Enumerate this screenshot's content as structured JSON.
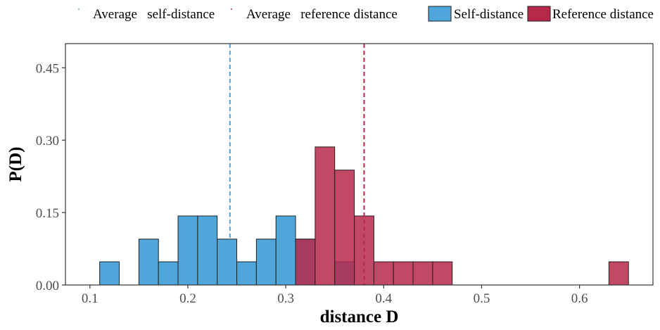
{
  "chart_data": {
    "type": "bar",
    "subtype": "overlapping-histogram",
    "title": "",
    "xlabel": "distance D",
    "ylabel": "P(D)",
    "xlim": [
      0.075,
      0.675
    ],
    "ylim": [
      0,
      0.5
    ],
    "x_ticks": [
      0.1,
      0.2,
      0.3,
      0.4,
      0.5,
      0.6
    ],
    "x_tick_labels": [
      "0.1",
      "0.2",
      "0.3",
      "0.4",
      "0.5",
      "0.6"
    ],
    "y_ticks": [
      0,
      0.15,
      0.3,
      0.45
    ],
    "y_tick_labels": [
      "0.00",
      "0.15",
      "0.30",
      "0.45"
    ],
    "bin_width": 0.02,
    "grid": false,
    "legend_position": "top",
    "series": [
      {
        "name": "Self-distance",
        "color": "#4ea6da",
        "bins": [
          {
            "x0": 0.11,
            "x1": 0.13,
            "value": 0.048
          },
          {
            "x0": 0.13,
            "x1": 0.15,
            "value": 0.0
          },
          {
            "x0": 0.15,
            "x1": 0.17,
            "value": 0.095
          },
          {
            "x0": 0.17,
            "x1": 0.19,
            "value": 0.048
          },
          {
            "x0": 0.19,
            "x1": 0.21,
            "value": 0.143
          },
          {
            "x0": 0.21,
            "x1": 0.23,
            "value": 0.143
          },
          {
            "x0": 0.23,
            "x1": 0.25,
            "value": 0.095
          },
          {
            "x0": 0.25,
            "x1": 0.27,
            "value": 0.048
          },
          {
            "x0": 0.27,
            "x1": 0.29,
            "value": 0.095
          },
          {
            "x0": 0.29,
            "x1": 0.31,
            "value": 0.143
          },
          {
            "x0": 0.31,
            "x1": 0.33,
            "value": 0.095
          },
          {
            "x0": 0.33,
            "x1": 0.35,
            "value": 0.0
          },
          {
            "x0": 0.35,
            "x1": 0.37,
            "value": 0.048
          },
          {
            "x0": 0.37,
            "x1": 0.39,
            "value": 0.0
          },
          {
            "x0": 0.39,
            "x1": 0.41,
            "value": 0.0
          },
          {
            "x0": 0.41,
            "x1": 0.43,
            "value": 0.0
          },
          {
            "x0": 0.43,
            "x1": 0.45,
            "value": 0.0
          },
          {
            "x0": 0.45,
            "x1": 0.47,
            "value": 0.0
          },
          {
            "x0": 0.47,
            "x1": 0.49,
            "value": 0.0
          },
          {
            "x0": 0.49,
            "x1": 0.51,
            "value": 0.0
          },
          {
            "x0": 0.51,
            "x1": 0.53,
            "value": 0.0
          },
          {
            "x0": 0.53,
            "x1": 0.55,
            "value": 0.0
          },
          {
            "x0": 0.55,
            "x1": 0.57,
            "value": 0.0
          },
          {
            "x0": 0.57,
            "x1": 0.59,
            "value": 0.0
          },
          {
            "x0": 0.59,
            "x1": 0.61,
            "value": 0.0
          },
          {
            "x0": 0.61,
            "x1": 0.63,
            "value": 0.0
          },
          {
            "x0": 0.63,
            "x1": 0.65,
            "value": 0.0
          }
        ]
      },
      {
        "name": "Reference distance",
        "color": "#b8284b",
        "bins": [
          {
            "x0": 0.11,
            "x1": 0.13,
            "value": 0.0
          },
          {
            "x0": 0.13,
            "x1": 0.15,
            "value": 0.0
          },
          {
            "x0": 0.15,
            "x1": 0.17,
            "value": 0.0
          },
          {
            "x0": 0.17,
            "x1": 0.19,
            "value": 0.0
          },
          {
            "x0": 0.19,
            "x1": 0.21,
            "value": 0.0
          },
          {
            "x0": 0.21,
            "x1": 0.23,
            "value": 0.0
          },
          {
            "x0": 0.23,
            "x1": 0.25,
            "value": 0.0
          },
          {
            "x0": 0.25,
            "x1": 0.27,
            "value": 0.0
          },
          {
            "x0": 0.27,
            "x1": 0.29,
            "value": 0.0
          },
          {
            "x0": 0.29,
            "x1": 0.31,
            "value": 0.0
          },
          {
            "x0": 0.31,
            "x1": 0.33,
            "value": 0.095
          },
          {
            "x0": 0.33,
            "x1": 0.35,
            "value": 0.286
          },
          {
            "x0": 0.35,
            "x1": 0.37,
            "value": 0.238
          },
          {
            "x0": 0.37,
            "x1": 0.39,
            "value": 0.143
          },
          {
            "x0": 0.39,
            "x1": 0.41,
            "value": 0.048
          },
          {
            "x0": 0.41,
            "x1": 0.43,
            "value": 0.048
          },
          {
            "x0": 0.43,
            "x1": 0.45,
            "value": 0.048
          },
          {
            "x0": 0.45,
            "x1": 0.47,
            "value": 0.048
          },
          {
            "x0": 0.47,
            "x1": 0.49,
            "value": 0.0
          },
          {
            "x0": 0.49,
            "x1": 0.51,
            "value": 0.0
          },
          {
            "x0": 0.51,
            "x1": 0.53,
            "value": 0.0
          },
          {
            "x0": 0.53,
            "x1": 0.55,
            "value": 0.0
          },
          {
            "x0": 0.55,
            "x1": 0.57,
            "value": 0.0
          },
          {
            "x0": 0.57,
            "x1": 0.59,
            "value": 0.0
          },
          {
            "x0": 0.59,
            "x1": 0.61,
            "value": 0.0
          },
          {
            "x0": 0.61,
            "x1": 0.63,
            "value": 0.0
          },
          {
            "x0": 0.63,
            "x1": 0.65,
            "value": 0.048
          }
        ]
      }
    ],
    "reference_lines": [
      {
        "name": "Average   self-distance",
        "x": 0.243,
        "color": "#4ea6da",
        "style": "dashed"
      },
      {
        "name": "Average   reference distance",
        "x": 0.38,
        "color": "#b8284b",
        "style": "dashed"
      }
    ],
    "legend": {
      "line_entries": [
        "Average   self-distance",
        "Average   reference distance"
      ],
      "fill_entries": [
        "Self-distance",
        "Reference distance"
      ]
    }
  }
}
